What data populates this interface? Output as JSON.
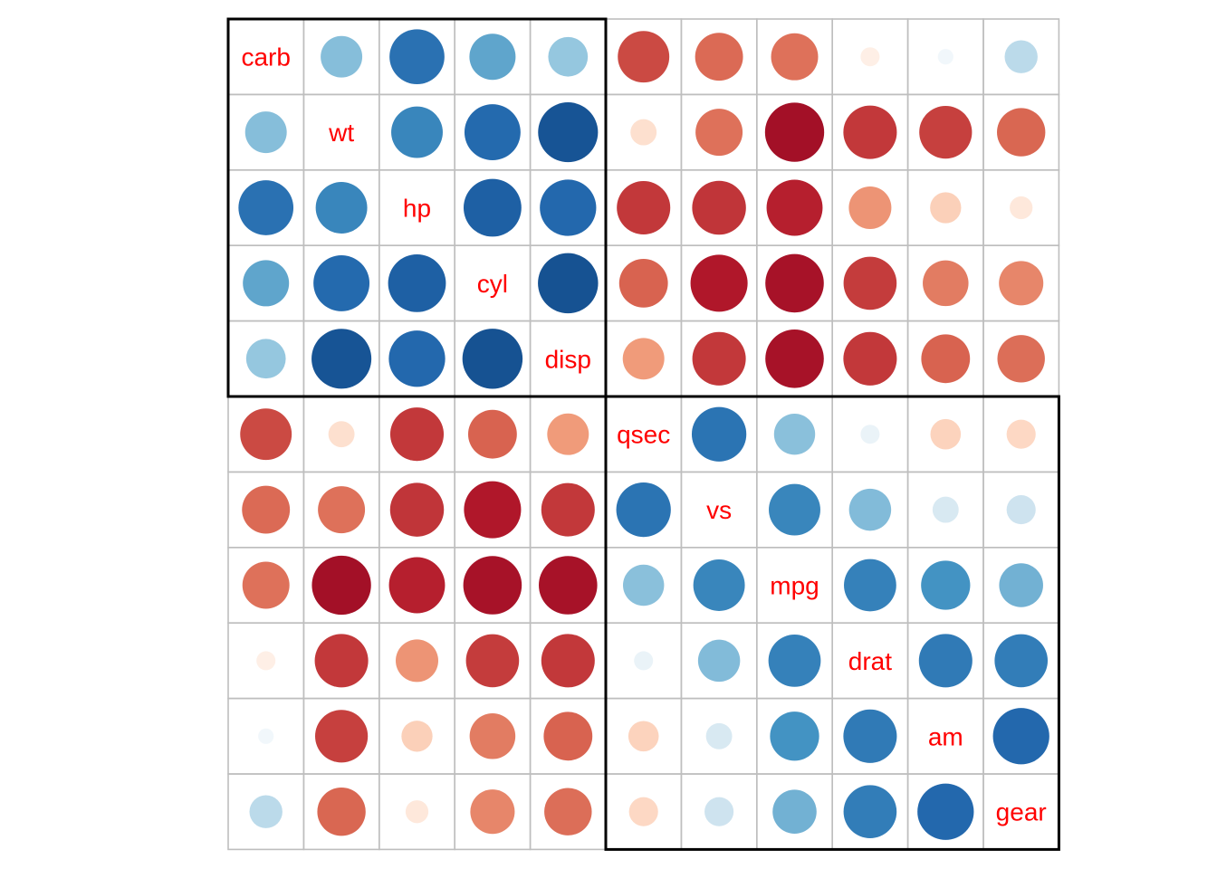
{
  "chart_data": {
    "type": "heatmap",
    "variables": [
      "carb",
      "wt",
      "hp",
      "cyl",
      "disp",
      "qsec",
      "vs",
      "mpg",
      "drat",
      "am",
      "gear"
    ],
    "matrix": [
      [
        1.0,
        0.43,
        0.75,
        0.53,
        0.39,
        -0.66,
        -0.57,
        -0.55,
        -0.09,
        0.06,
        0.27
      ],
      [
        0.43,
        1.0,
        0.66,
        0.78,
        0.89,
        -0.17,
        -0.55,
        -0.87,
        -0.71,
        -0.69,
        -0.58
      ],
      [
        0.75,
        0.66,
        1.0,
        0.83,
        0.79,
        -0.71,
        -0.72,
        -0.78,
        -0.45,
        -0.24,
        -0.13
      ],
      [
        0.53,
        0.78,
        0.83,
        1.0,
        0.9,
        -0.59,
        -0.81,
        -0.85,
        -0.7,
        -0.52,
        -0.49
      ],
      [
        0.39,
        0.89,
        0.79,
        0.9,
        1.0,
        -0.43,
        -0.71,
        -0.85,
        -0.71,
        -0.59,
        -0.56
      ],
      [
        -0.66,
        -0.17,
        -0.71,
        -0.59,
        -0.43,
        1.0,
        0.74,
        0.42,
        0.09,
        -0.23,
        -0.21
      ],
      [
        -0.57,
        -0.55,
        -0.72,
        -0.81,
        -0.71,
        0.74,
        1.0,
        0.66,
        0.44,
        0.17,
        0.21
      ],
      [
        -0.55,
        -0.87,
        -0.78,
        -0.85,
        -0.85,
        0.42,
        0.66,
        1.0,
        0.68,
        0.6,
        0.48
      ],
      [
        -0.09,
        -0.71,
        -0.45,
        -0.7,
        -0.71,
        0.09,
        0.44,
        0.68,
        1.0,
        0.71,
        0.7
      ],
      [
        0.06,
        -0.69,
        -0.24,
        -0.52,
        -0.59,
        -0.23,
        0.17,
        0.6,
        0.71,
        1.0,
        0.79
      ],
      [
        0.27,
        -0.58,
        -0.13,
        -0.49,
        -0.56,
        -0.21,
        0.21,
        0.48,
        0.7,
        0.79,
        1.0
      ]
    ],
    "clusters": [
      {
        "start": 0,
        "end": 4
      },
      {
        "start": 5,
        "end": 10
      }
    ],
    "range": [
      -1,
      1
    ],
    "colors": {
      "positive": "#0a3d78",
      "negative": "#860020",
      "neutral": "#ffffff",
      "grid": "#bebebe",
      "label": "#ff0000",
      "cluster_box": "#000000"
    }
  }
}
